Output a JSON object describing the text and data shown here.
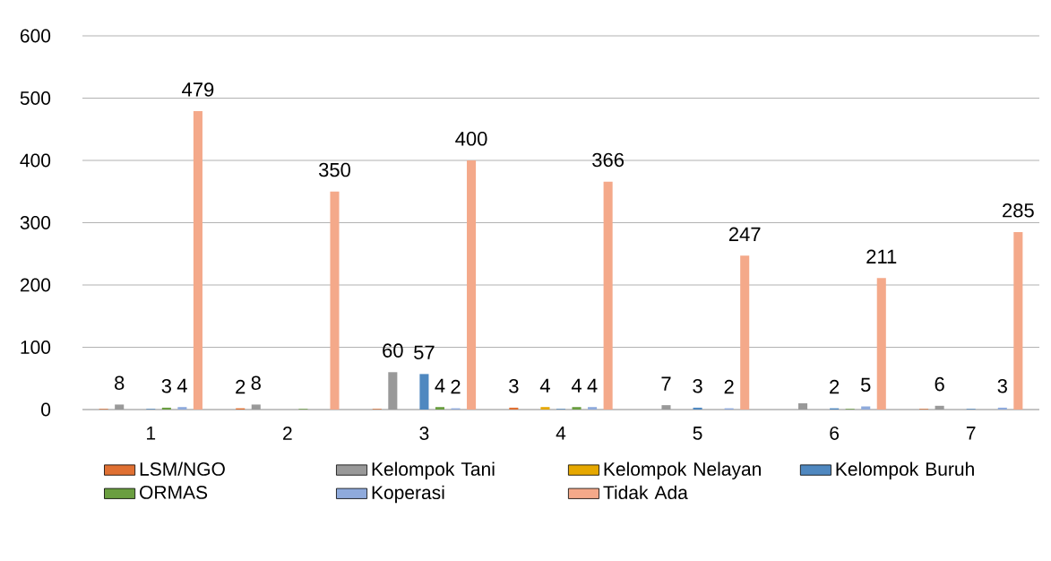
{
  "chart_data": {
    "type": "bar",
    "categories": [
      "1",
      "2",
      "3",
      "4",
      "5",
      "6",
      "7"
    ],
    "series": [
      {
        "name": "LSM/NGO",
        "color": "#e07032",
        "values": [
          1,
          2,
          1,
          3,
          0,
          0,
          1
        ],
        "value_labels": [
          null,
          "2",
          null,
          "3",
          null,
          null,
          null
        ]
      },
      {
        "name": "Kelompok Tani",
        "color": "#999999",
        "values": [
          8,
          8,
          60,
          null,
          7,
          10,
          6
        ],
        "value_labels": [
          "8",
          "8",
          "60",
          null,
          "7",
          null,
          "6"
        ]
      },
      {
        "name": "Kelompok Nelayan",
        "color": "#e6a800",
        "values": [
          0,
          0,
          0,
          4,
          0,
          0,
          0
        ],
        "value_labels": [
          null,
          null,
          null,
          "4",
          null,
          null,
          null
        ]
      },
      {
        "name": "Kelompok Buruh",
        "color": "#4f88c0",
        "values": [
          1,
          0,
          57,
          1,
          3,
          2,
          1
        ],
        "value_labels": [
          null,
          null,
          "57",
          null,
          "3",
          "2",
          null
        ]
      },
      {
        "name": "ORMAS",
        "color": "#6a9e40",
        "values": [
          3,
          1,
          4,
          4,
          0,
          1,
          0
        ],
        "value_labels": [
          "3",
          null,
          "4",
          "4",
          null,
          null,
          null
        ]
      },
      {
        "name": "Koperasi",
        "color": "#8faadc",
        "values": [
          4,
          0,
          2,
          4,
          2,
          5,
          3
        ],
        "value_labels": [
          "4",
          null,
          "2",
          "4",
          "2",
          "5",
          "3"
        ]
      },
      {
        "name": "Tidak Ada",
        "color": "#f4a98a",
        "values": [
          479,
          350,
          400,
          366,
          247,
          211,
          285
        ],
        "value_labels": [
          "479",
          "350",
          "400",
          "366",
          "247",
          "211",
          "285"
        ]
      }
    ],
    "ylim": [
      0,
      600
    ],
    "yticks": [
      0,
      100,
      200,
      300,
      400,
      500,
      600
    ],
    "grid": "y",
    "legend": "bottom"
  }
}
